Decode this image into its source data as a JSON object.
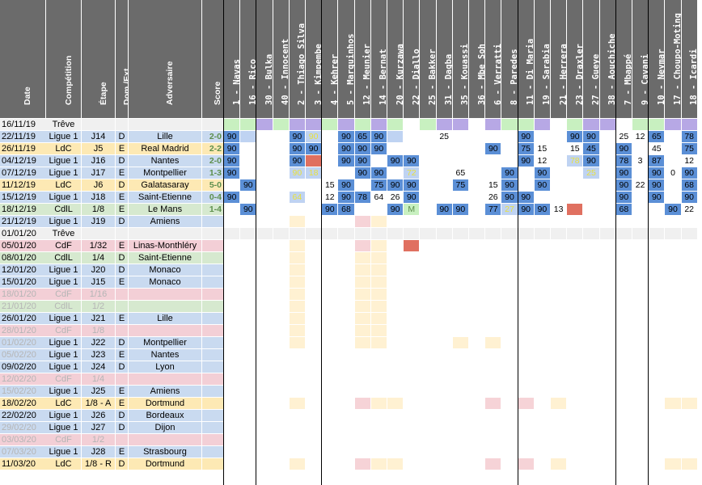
{
  "headers": {
    "info": [
      "Date",
      "Compétition",
      "Étape",
      "Dom./Ext.",
      "Adversaire",
      "Score"
    ],
    "players": [
      "1 - Navas",
      "16 - Rico",
      "30 - Bulka",
      "40 - Innocent",
      "2 - Thiago Silva",
      "3 - Kimpembe",
      "4 - Kehrer",
      "5 - Marquinhos",
      "12 - Meunier",
      "14 - Bernat",
      "20 - Kurzawa",
      "22 - Diallo",
      "25 - Bakker",
      "31 - Dagba",
      "35 - Kouassi",
      "36 - Mbe Soh",
      "6 - Verratti",
      "8 - Paredes",
      "11 - Di Maria",
      "19 - Sarabia",
      "21 - Herrera",
      "23 - Draxler",
      "27 - Gueye",
      "38 - Aouchiche",
      "7 - Mbappé",
      "9 - Cavani",
      "10 - Neymar",
      "17 - Choupo-Moting",
      "18 - Icardi"
    ]
  },
  "colors": {
    "ligue1": "#c9daf0",
    "ldc": "#fde9b4",
    "cdil": "#d6e9cf",
    "cdf": "#f3cfd6",
    "pale": "#f0f0f0",
    "header": "#6b6b6b",
    "starter": "#5b8fd6",
    "sub": "#bfd3f2",
    "bench": "#c8f0c0",
    "injured": "#b7a8e5",
    "red": "#e07060",
    "future": "#fff1d2",
    "futurePink": "#f6d3d7"
  },
  "rows": [
    {
      "date": "16/11/19",
      "comp": "Trêve",
      "step": "",
      "home": "",
      "opp": "",
      "score": "",
      "type": "treve",
      "cells": [
        "b",
        "b",
        "i",
        "b",
        "i",
        "i",
        "b",
        "i",
        "b",
        "i",
        "b",
        "",
        "b",
        "i",
        "i",
        "",
        "i",
        "b",
        "b",
        "i",
        "",
        "b",
        "i",
        "i",
        "",
        "b",
        "b",
        "i",
        "i"
      ]
    },
    {
      "date": "22/11/19",
      "comp": "Ligue 1",
      "step": "J14",
      "home": "D",
      "opp": "Lille",
      "score": "2-0",
      "type": "ligue1",
      "cells": [
        "s:90",
        "u",
        "",
        "",
        "s:90",
        "u:90",
        "",
        "s:90",
        "s:65",
        "s:90",
        "u",
        "",
        "",
        "25",
        "",
        "",
        "",
        "",
        "s:90",
        "",
        "",
        "s:90",
        "s:90",
        "",
        "25",
        "12",
        "s:65",
        "",
        "s:78"
      ]
    },
    {
      "date": "26/11/19",
      "comp": "LdC",
      "step": "J5",
      "home": "E",
      "opp": "Real Madrid",
      "score": "2-2",
      "type": "ldc",
      "cells": [
        "s:90",
        "",
        "",
        "",
        "s:90",
        "s:90",
        "",
        "s:90",
        "s:90",
        "s:90",
        "",
        "",
        "",
        "",
        "",
        "",
        "s:90",
        "",
        "s:75",
        "15",
        "",
        "15",
        "s:45",
        "",
        "s:90",
        "",
        "45",
        "",
        "s:75"
      ]
    },
    {
      "date": "04/12/19",
      "comp": "Ligue 1",
      "step": "J16",
      "home": "D",
      "opp": "Nantes",
      "score": "2-0",
      "type": "ligue1",
      "cells": [
        "s:90",
        "",
        "",
        "",
        "s:90",
        "r",
        "",
        "s:90",
        "s:90",
        "",
        "s:90",
        "s:90",
        "",
        "",
        "",
        "",
        "",
        "",
        "s:90",
        "12",
        "",
        "u:78",
        "s:90",
        "",
        "s:78",
        "3",
        "s:87",
        "",
        "12"
      ]
    },
    {
      "date": "07/12/19",
      "comp": "Ligue 1",
      "step": "J17",
      "home": "E",
      "opp": "Montpellier",
      "score": "1-3",
      "type": "ligue1",
      "cells": [
        "s:90",
        "",
        "",
        "",
        "u:90",
        "u:18",
        "",
        "",
        "s:90",
        "s:90",
        "",
        "u:72",
        "",
        "",
        "65",
        "",
        "",
        "s:90",
        "",
        "s:90",
        "",
        "",
        "u:25",
        "",
        "s:90",
        "",
        "s:90",
        "0",
        "s:90"
      ]
    },
    {
      "date": "11/12/19",
      "comp": "LdC",
      "step": "J6",
      "home": "D",
      "opp": "Galatasaray",
      "score": "5-0",
      "type": "ldc",
      "cells": [
        "",
        "s:90",
        "",
        "",
        "",
        "",
        "15",
        "s:90",
        "",
        "s:75",
        "s:90",
        "s:90",
        "",
        "",
        "s:75",
        "",
        "15",
        "s:90",
        "",
        "s:90",
        "",
        "",
        "",
        "",
        "s:90",
        "22",
        "s:90",
        "",
        "s:68"
      ]
    },
    {
      "date": "15/12/19",
      "comp": "Ligue 1",
      "step": "J18",
      "home": "E",
      "opp": "Saint-Etienne",
      "score": "0-4",
      "type": "ligue1",
      "cells": [
        "s:90",
        "",
        "",
        "",
        "u:64",
        "",
        "12",
        "s:90",
        "s:78",
        "64",
        "26",
        "s:90",
        "",
        "",
        "",
        "",
        "26",
        "s:90",
        "s:90",
        "",
        "",
        "",
        "",
        "",
        "s:90",
        "",
        "s:90",
        "",
        "s:90"
      ]
    },
    {
      "date": "18/12/19",
      "comp": "CdlL",
      "step": "1/8",
      "home": "E",
      "opp": "Le Mans",
      "score": "1-4",
      "type": "cdil",
      "cells": [
        "",
        "s:90",
        "",
        "",
        "",
        "",
        "s:90",
        "s:68",
        "",
        "",
        "s:90",
        "g:M",
        "",
        "s:90",
        "s:90",
        "",
        "s:77",
        "u:27",
        "s:90",
        "s:90",
        "13",
        "r",
        "",
        "",
        "s:68",
        "",
        "",
        "s:90",
        "22"
      ]
    },
    {
      "date": "21/12/19",
      "comp": "Ligue 1",
      "step": "J19",
      "home": "D",
      "opp": "Amiens",
      "score": "",
      "type": "ligue1",
      "cells": [
        "",
        "",
        "",
        "",
        "f",
        "",
        "",
        "",
        "fp",
        "f",
        "",
        "",
        "",
        "",
        "",
        "",
        "",
        "",
        "",
        "",
        "",
        "",
        "",
        "",
        "",
        "",
        "",
        "",
        ""
      ]
    },
    {
      "date": "01/01/20",
      "comp": "Trêve",
      "step": "",
      "home": "",
      "opp": "",
      "score": "",
      "type": "treve",
      "cells": [
        "p",
        "p",
        "p",
        "p",
        "p",
        "p",
        "p",
        "p",
        "p",
        "p",
        "p",
        "p",
        "p",
        "p",
        "p",
        "p",
        "p",
        "p",
        "p",
        "p",
        "p",
        "p",
        "p",
        "p",
        "p",
        "p",
        "p",
        "p",
        "p"
      ]
    },
    {
      "date": "05/01/20",
      "comp": "CdF",
      "step": "1/32",
      "home": "E",
      "opp": "Linas-Monthléry",
      "score": "",
      "type": "cdf",
      "cells": [
        "",
        "",
        "",
        "",
        "f",
        "",
        "",
        "",
        "fp",
        "f",
        "",
        "r",
        "",
        "",
        "",
        "",
        "",
        "",
        "",
        "",
        "",
        "",
        "",
        "",
        "",
        "",
        "",
        "",
        ""
      ]
    },
    {
      "date": "08/01/20",
      "comp": "CdlL",
      "step": "1/4",
      "home": "D",
      "opp": "Saint-Etienne",
      "score": "",
      "type": "cdil",
      "cells": [
        "",
        "",
        "",
        "",
        "f",
        "",
        "",
        "",
        "f",
        "f",
        "",
        "",
        "",
        "",
        "",
        "",
        "",
        "",
        "",
        "",
        "",
        "",
        "",
        "",
        "",
        "",
        "",
        "",
        ""
      ]
    },
    {
      "date": "12/01/20",
      "comp": "Ligue 1",
      "step": "J20",
      "home": "D",
      "opp": "Monaco",
      "score": "",
      "type": "ligue1",
      "cells": [
        "",
        "",
        "",
        "",
        "f",
        "",
        "",
        "",
        "f",
        "f",
        "",
        "",
        "",
        "",
        "",
        "",
        "",
        "",
        "",
        "",
        "",
        "",
        "",
        "",
        "",
        "",
        "",
        "",
        ""
      ]
    },
    {
      "date": "15/01/20",
      "comp": "Ligue 1",
      "step": "J15",
      "home": "E",
      "opp": "Monaco",
      "score": "",
      "type": "ligue1",
      "cells": [
        "",
        "",
        "",
        "",
        "f",
        "",
        "",
        "",
        "f",
        "f",
        "",
        "",
        "",
        "",
        "",
        "",
        "",
        "",
        "",
        "",
        "",
        "",
        "",
        "",
        "",
        "",
        "",
        "",
        ""
      ]
    },
    {
      "date": "18/01/20",
      "comp": "CdF",
      "step": "1/16",
      "home": "",
      "opp": "",
      "score": "",
      "type": "cdf",
      "dim": true,
      "cells": [
        "",
        "",
        "",
        "",
        "f",
        "",
        "",
        "",
        "f",
        "f",
        "",
        "",
        "",
        "",
        "",
        "",
        "",
        "",
        "",
        "",
        "",
        "",
        "",
        "",
        "",
        "",
        "",
        "",
        ""
      ]
    },
    {
      "date": "21/01/20",
      "comp": "CdlL",
      "step": "1/2",
      "home": "",
      "opp": "",
      "score": "",
      "type": "cdil",
      "dim": true,
      "cells": [
        "",
        "",
        "",
        "",
        "f",
        "",
        "",
        "",
        "f",
        "f",
        "",
        "",
        "",
        "",
        "",
        "",
        "",
        "",
        "",
        "",
        "",
        "",
        "",
        "",
        "",
        "",
        "",
        "",
        ""
      ]
    },
    {
      "date": "26/01/20",
      "comp": "Ligue 1",
      "step": "J21",
      "home": "E",
      "opp": "Lille",
      "score": "",
      "type": "ligue1",
      "cells": [
        "",
        "",
        "",
        "",
        "f",
        "",
        "",
        "",
        "f",
        "f",
        "",
        "",
        "",
        "",
        "",
        "",
        "",
        "",
        "",
        "",
        "",
        "",
        "",
        "",
        "",
        "",
        "",
        "",
        ""
      ]
    },
    {
      "date": "28/01/20",
      "comp": "CdF",
      "step": "1/8",
      "home": "",
      "opp": "",
      "score": "",
      "type": "cdf",
      "dim": true,
      "cells": [
        "",
        "",
        "",
        "",
        "f",
        "",
        "",
        "",
        "f",
        "f",
        "",
        "",
        "",
        "",
        "",
        "",
        "",
        "",
        "",
        "",
        "",
        "",
        "",
        "",
        "",
        "",
        "",
        "",
        ""
      ]
    },
    {
      "date": "01/02/20",
      "comp": "Ligue 1",
      "step": "J22",
      "home": "D",
      "opp": "Montpellier",
      "score": "",
      "type": "ligue1",
      "datedim": true,
      "cells": [
        "",
        "",
        "",
        "",
        "f",
        "",
        "",
        "",
        "f",
        "f",
        "",
        "",
        "",
        "",
        "f",
        "",
        "f",
        "",
        "",
        "",
        "",
        "",
        "",
        "",
        "",
        "",
        "",
        "",
        ""
      ]
    },
    {
      "date": "05/02/20",
      "comp": "Ligue 1",
      "step": "J23",
      "home": "E",
      "opp": "Nantes",
      "score": "",
      "type": "ligue1",
      "datedim": true,
      "cells": [
        "",
        "",
        "",
        "",
        "",
        "",
        "",
        "",
        "",
        "",
        "",
        "",
        "",
        "",
        "",
        "",
        "",
        "",
        "",
        "",
        "",
        "",
        "",
        "",
        "",
        "",
        "",
        "",
        ""
      ]
    },
    {
      "date": "09/02/20",
      "comp": "Ligue 1",
      "step": "J24",
      "home": "D",
      "opp": "Lyon",
      "score": "",
      "type": "ligue1",
      "cells": [
        "",
        "",
        "",
        "",
        "",
        "",
        "",
        "",
        "",
        "",
        "",
        "",
        "",
        "",
        "",
        "",
        "",
        "",
        "",
        "",
        "",
        "",
        "",
        "",
        "",
        "",
        "",
        "",
        ""
      ]
    },
    {
      "date": "12/02/20",
      "comp": "CdF",
      "step": "1/4",
      "home": "",
      "opp": "",
      "score": "",
      "type": "cdf",
      "dim": true,
      "cells": [
        "",
        "",
        "",
        "",
        "",
        "",
        "",
        "",
        "",
        "",
        "",
        "",
        "",
        "",
        "",
        "",
        "",
        "",
        "",
        "",
        "",
        "",
        "",
        "",
        "",
        "",
        "",
        "",
        ""
      ]
    },
    {
      "date": "15/02/20",
      "comp": "Ligue 1",
      "step": "J25",
      "home": "E",
      "opp": "Amiens",
      "score": "",
      "type": "ligue1",
      "datedim": true,
      "cells": [
        "",
        "",
        "",
        "",
        "",
        "",
        "",
        "",
        "",
        "",
        "",
        "",
        "",
        "",
        "",
        "",
        "",
        "",
        "",
        "",
        "",
        "",
        "",
        "",
        "",
        "",
        "",
        "",
        ""
      ]
    },
    {
      "date": "18/02/20",
      "comp": "LdC",
      "step": "1/8 - A",
      "home": "E",
      "opp": "Dortmund",
      "score": "",
      "type": "ldc",
      "cells": [
        "",
        "",
        "",
        "",
        "f",
        "",
        "",
        "",
        "fp",
        "f",
        "f",
        "",
        "",
        "",
        "",
        "",
        "fp",
        "",
        "fp",
        "",
        "f",
        "",
        "",
        "",
        "",
        "",
        "",
        "f",
        "f"
      ]
    },
    {
      "date": "22/02/20",
      "comp": "Ligue 1",
      "step": "J26",
      "home": "D",
      "opp": "Bordeaux",
      "score": "",
      "type": "ligue1",
      "cells": [
        "",
        "",
        "",
        "",
        "",
        "",
        "",
        "",
        "",
        "",
        "",
        "",
        "",
        "",
        "",
        "",
        "",
        "",
        "",
        "",
        "",
        "",
        "",
        "",
        "",
        "",
        "",
        "",
        ""
      ]
    },
    {
      "date": "29/02/20",
      "comp": "Ligue 1",
      "step": "J27",
      "home": "D",
      "opp": "Dijon",
      "score": "",
      "type": "ligue1",
      "datedim": true,
      "cells": [
        "",
        "",
        "",
        "",
        "",
        "",
        "",
        "",
        "",
        "",
        "",
        "",
        "",
        "",
        "",
        "",
        "",
        "",
        "",
        "",
        "",
        "",
        "",
        "",
        "",
        "",
        "",
        "",
        ""
      ]
    },
    {
      "date": "03/03/20",
      "comp": "CdF",
      "step": "1/2",
      "home": "",
      "opp": "",
      "score": "",
      "type": "cdf",
      "dim": true,
      "cells": [
        "",
        "",
        "",
        "",
        "",
        "",
        "",
        "",
        "",
        "",
        "",
        "",
        "",
        "",
        "",
        "",
        "",
        "",
        "",
        "",
        "",
        "",
        "",
        "",
        "",
        "",
        "",
        "",
        ""
      ]
    },
    {
      "date": "07/03/20",
      "comp": "Ligue 1",
      "step": "J28",
      "home": "E",
      "opp": "Strasbourg",
      "score": "",
      "type": "ligue1",
      "datedim": true,
      "cells": [
        "",
        "",
        "",
        "",
        "",
        "",
        "",
        "",
        "",
        "",
        "",
        "",
        "",
        "",
        "",
        "",
        "",
        "",
        "",
        "",
        "",
        "",
        "",
        "",
        "",
        "",
        "",
        "",
        ""
      ]
    },
    {
      "date": "11/03/20",
      "comp": "LdC",
      "step": "1/8 - R",
      "home": "D",
      "opp": "Dortmund",
      "score": "",
      "type": "ldc",
      "cells": [
        "",
        "",
        "",
        "",
        "f",
        "",
        "",
        "",
        "fp",
        "f",
        "f",
        "",
        "",
        "",
        "",
        "",
        "fp",
        "",
        "fp",
        "",
        "f",
        "",
        "",
        "",
        "",
        "",
        "",
        "f",
        "f"
      ]
    }
  ]
}
